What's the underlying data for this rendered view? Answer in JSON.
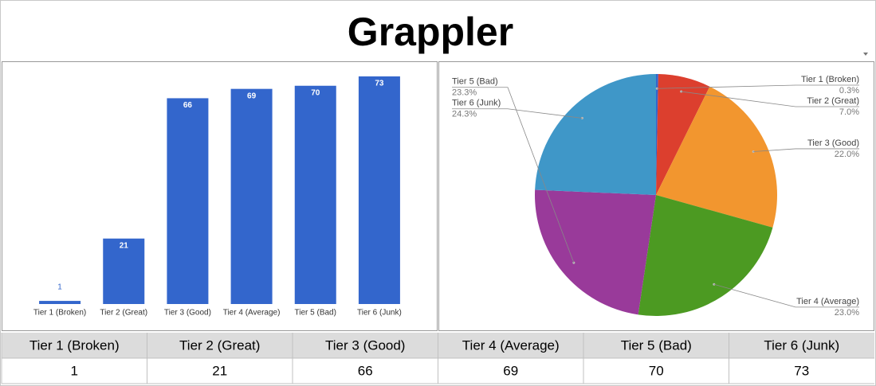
{
  "title": "Grappler",
  "chart_data": [
    {
      "type": "bar",
      "categories": [
        "Tier 1 (Broken)",
        "Tier 2 (Great)",
        "Tier 3 (Good)",
        "Tier 4 (Average)",
        "Tier 5 (Bad)",
        "Tier 6 (Junk)"
      ],
      "values": [
        1,
        21,
        66,
        69,
        70,
        73
      ],
      "color": "#3366cc",
      "ylim": [
        0,
        73
      ]
    },
    {
      "type": "pie",
      "categories": [
        "Tier 1 (Broken)",
        "Tier 2 (Great)",
        "Tier 3 (Good)",
        "Tier 4 (Average)",
        "Tier 5 (Bad)",
        "Tier 6 (Junk)"
      ],
      "values": [
        0.3,
        7.0,
        22.0,
        23.0,
        23.3,
        24.3
      ],
      "value_labels": [
        "0.3%",
        "7.0%",
        "22.0%",
        "23.0%",
        "23.3%",
        "24.3%"
      ],
      "colors": [
        "#3366cc",
        "#dc3f2e",
        "#f2962f",
        "#4c9a22",
        "#993a9a",
        "#3f97c8"
      ]
    }
  ],
  "table": {
    "header": [
      "Tier 1 (Broken)",
      "Tier 2 (Great)",
      "Tier 3 (Good)",
      "Tier 4 (Average)",
      "Tier 5 (Bad)",
      "Tier 6 (Junk)"
    ],
    "rows": [
      [
        1,
        21,
        66,
        69,
        70,
        73
      ]
    ]
  }
}
